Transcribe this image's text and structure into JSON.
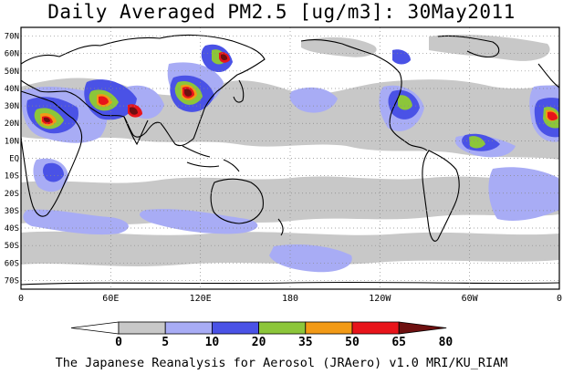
{
  "title": "Daily Averaged PM2.5 [ug/m3]: 30May2011",
  "footer": "The Japanese Reanalysis for Aerosol (JRAero) v1.0 MRI/KU_RIAM",
  "map": {
    "projection": "equirectangular",
    "lon_range": [
      0,
      360
    ],
    "lat_range": [
      -75,
      75
    ],
    "grid": true,
    "lat_ticks": [
      "70N",
      "60N",
      "50N",
      "40N",
      "30N",
      "20N",
      "10N",
      "EQ",
      "10S",
      "20S",
      "30S",
      "40S",
      "50S",
      "60S",
      "70S"
    ],
    "lat_values": [
      70,
      60,
      50,
      40,
      30,
      20,
      10,
      0,
      -10,
      -20,
      -30,
      -40,
      -50,
      -60,
      -70
    ],
    "lon_ticks": [
      "0",
      "60E",
      "120E",
      "180",
      "120W",
      "60W",
      "0"
    ],
    "lon_values": [
      0,
      60,
      120,
      180,
      240,
      300,
      360
    ]
  },
  "colorbar": {
    "labels": [
      "0",
      "5",
      "10",
      "20",
      "35",
      "50",
      "65",
      "80"
    ],
    "colors": [
      "#ffffff",
      "#c8c8c8",
      "#a8acf5",
      "#4a52e6",
      "#8cc63a",
      "#f29a16",
      "#e8141a",
      "#6e1010"
    ]
  }
}
